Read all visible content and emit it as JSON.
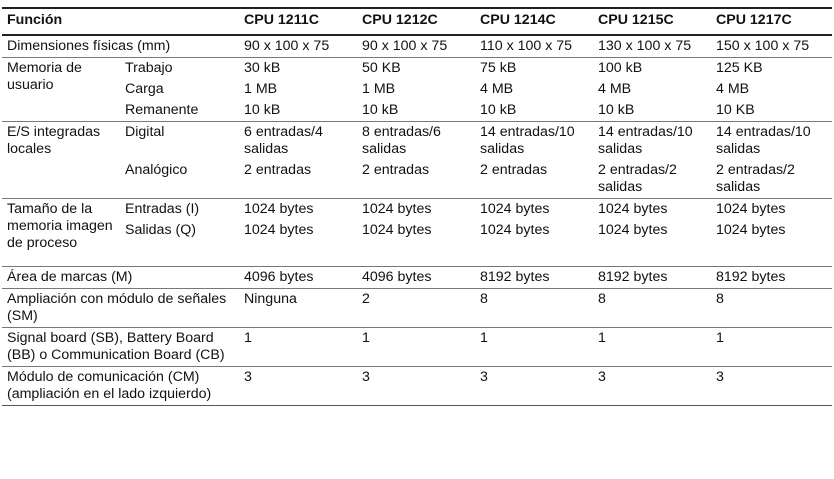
{
  "header": [
    "Función",
    "CPU 1211C",
    "CPU 1212C",
    "CPU 1214C",
    "CPU 1215C",
    "CPU 1217C"
  ],
  "rows": {
    "dimensiones": {
      "label": "Dimensiones físicas (mm)",
      "values": [
        "90 x 100 x 75",
        "90 x 100 x 75",
        "110 x 100 x 75",
        "130 x 100 x 75",
        "150 x 100 x 75"
      ]
    },
    "memoria": {
      "label": "Memoria de usuario",
      "trabajo": {
        "label": "Trabajo",
        "values": [
          "30 kB",
          "50 KB",
          "75 kB",
          "100 kB",
          "125 KB"
        ]
      },
      "carga": {
        "label": "Carga",
        "values": [
          "1 MB",
          "1 MB",
          "4 MB",
          "4 MB",
          "4 MB"
        ]
      },
      "remanente": {
        "label": "Remanente",
        "values": [
          "10 kB",
          "10 kB",
          "10 kB",
          "10 kB",
          "10 KB"
        ]
      }
    },
    "es": {
      "label": "E/S integradas locales",
      "digital": {
        "label": "Digital",
        "values": [
          "6 entradas/4 salidas",
          "8 entradas/6 salidas",
          "14 entradas/10 salidas",
          "14 entradas/10 salidas",
          "14 entradas/10 salidas"
        ]
      },
      "analogico": {
        "label": "Analógico",
        "values": [
          "2 entradas",
          "2 entradas",
          "2 entradas",
          "2 entradas/2 salidas",
          "2 entradas/2 salidas"
        ]
      }
    },
    "imagen": {
      "label": "Tamaño de la memoria imagen de proceso",
      "entradas": {
        "label": "Entradas (I)",
        "values": [
          "1024 bytes",
          "1024 bytes",
          "1024 bytes",
          "1024 bytes",
          "1024 bytes"
        ]
      },
      "salidas": {
        "label": "Salidas (Q)",
        "values": [
          "1024 bytes",
          "1024 bytes",
          "1024 bytes",
          "1024 bytes",
          "1024 bytes"
        ]
      }
    },
    "marcas": {
      "label": "Área de marcas (M)",
      "values": [
        "4096 bytes",
        "4096 bytes",
        "8192 bytes",
        "8192 bytes",
        "8192 bytes"
      ]
    },
    "sm": {
      "label": "Ampliación con módulo de señales (SM)",
      "values": [
        "Ninguna",
        "2",
        "8",
        "8",
        "8"
      ]
    },
    "sb": {
      "label": "Signal board (SB), Battery Board (BB) o Communication Board (CB)",
      "values": [
        "1",
        "1",
        "1",
        "1",
        "1"
      ]
    },
    "cm": {
      "label": "Módulo de comunicación (CM) (ampliación en el lado izquierdo)",
      "values": [
        "3",
        "3",
        "3",
        "3",
        "3"
      ]
    }
  }
}
